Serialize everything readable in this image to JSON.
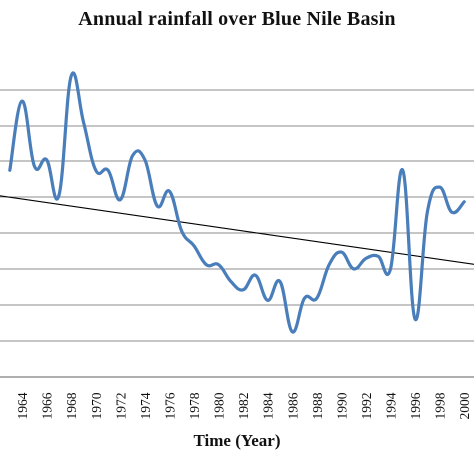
{
  "chart_data": {
    "type": "line",
    "title": "Annual rainfall over Blue Nile Basin",
    "xlabel": "Time (Year)",
    "ylabel": "",
    "grid": true,
    "legend": "none",
    "x_tick_labels": [
      "1964",
      "1966",
      "1968",
      "1970",
      "1972",
      "1974",
      "1976",
      "1978",
      "1980",
      "1982",
      "1984",
      "1986",
      "1988",
      "1990",
      "1992",
      "1994",
      "1996",
      "1998",
      "2000"
    ],
    "series": [
      {
        "color": "#4a7ebb",
        "x": [
          1963,
          1964,
          1965,
          1966,
          1967,
          1968,
          1969,
          1970,
          1971,
          1972,
          1973,
          1974,
          1975,
          1976,
          1977,
          1978,
          1979,
          1980,
          1981,
          1982,
          1983,
          1984,
          1985,
          1986,
          1987,
          1988,
          1989,
          1990,
          1991,
          1992,
          1993,
          1994,
          1995,
          1996,
          1997,
          1998,
          1999,
          2000
        ],
        "y": [
          0.45,
          0.78,
          0.47,
          0.5,
          0.33,
          0.9,
          0.68,
          0.45,
          0.45,
          0.31,
          0.52,
          0.5,
          0.28,
          0.35,
          0.16,
          0.09,
          0.0,
          0.0,
          -0.08,
          -0.12,
          -0.05,
          -0.17,
          -0.08,
          -0.32,
          -0.16,
          -0.16,
          0.0,
          0.06,
          -0.02,
          0.03,
          0.04,
          -0.02,
          0.45,
          -0.26,
          0.25,
          0.37,
          0.25,
          0.3
        ]
      },
      {
        "color": "#000000",
        "x": [
          1962,
          2001
        ],
        "y": [
          0.33,
          0.0
        ]
      }
    ]
  }
}
